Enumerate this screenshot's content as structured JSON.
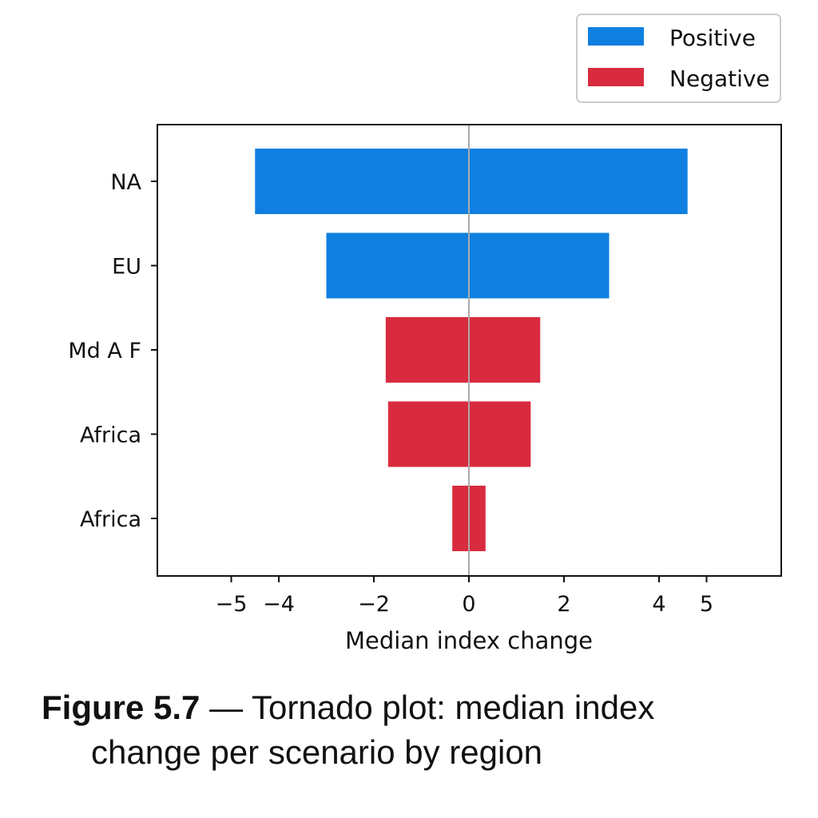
{
  "chart_data": {
    "type": "bar",
    "orientation": "horizontal",
    "style": "tornado",
    "categories": [
      "NA",
      "EU",
      "Md A F",
      "Africa",
      "Africa"
    ],
    "series": [
      {
        "name": "Positive",
        "color": "#0f7fe0",
        "low": [
          -4.5,
          -3.0,
          null,
          null,
          null
        ],
        "high": [
          4.6,
          2.95,
          null,
          null,
          null
        ]
      },
      {
        "name": "Negative",
        "color": "#d92b3f",
        "low": [
          null,
          null,
          -1.75,
          -1.7,
          -0.35
        ],
        "high": [
          null,
          null,
          1.5,
          1.3,
          0.35
        ]
      }
    ],
    "xlabel": "Median index change",
    "ylabel": "",
    "xlim": [
      -6.5,
      6.5
    ],
    "xticks": [
      -5,
      -4,
      -2,
      0,
      2,
      4,
      5
    ],
    "xtick_labels": [
      "−5",
      "−4",
      "−2",
      "0",
      "2",
      "4",
      "5"
    ],
    "zero_line": true,
    "grid": false,
    "legend_position": "top-right"
  },
  "caption": {
    "figure_number": "Figure 5.7",
    "text_line1": " — Tornado plot: median index",
    "text_line2": "change per scenario by region"
  }
}
